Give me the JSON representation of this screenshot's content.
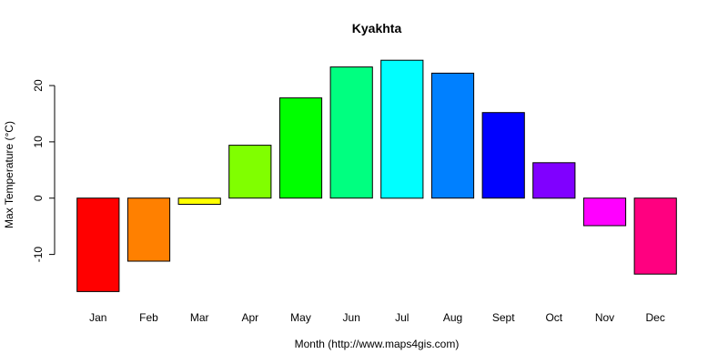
{
  "chart_data": {
    "type": "bar",
    "title": "Kyakhta",
    "xlabel": "Month (http://www.maps4gis.com)",
    "ylabel": "Max Temperature (°C)",
    "categories": [
      "Jan",
      "Feb",
      "Mar",
      "Apr",
      "May",
      "Jun",
      "Jul",
      "Aug",
      "Sept",
      "Oct",
      "Nov",
      "Dec"
    ],
    "values": [
      -16.6,
      -11.2,
      -1.1,
      9.4,
      17.8,
      23.3,
      24.5,
      22.2,
      15.2,
      6.3,
      -4.9,
      -13.5
    ],
    "colors": [
      "#ff0000",
      "#ff8000",
      "#ffff00",
      "#80ff00",
      "#00ff00",
      "#00ff80",
      "#00ffff",
      "#0080ff",
      "#0000ff",
      "#8000ff",
      "#ff00ff",
      "#ff0080"
    ],
    "yticks": [
      -10,
      0,
      10,
      20
    ],
    "ylim": [
      -17.5,
      25.5
    ],
    "grid": false,
    "legend": "none"
  }
}
